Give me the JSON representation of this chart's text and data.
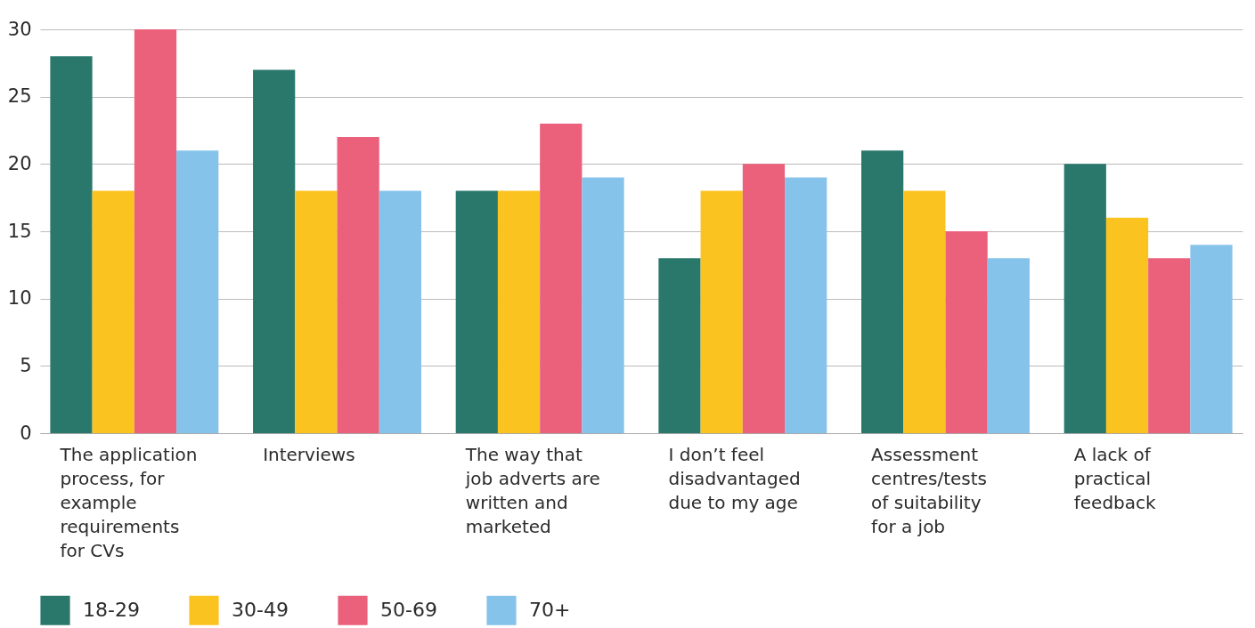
{
  "chart_data": {
    "type": "bar",
    "categories": [
      "The application process, for example requirements for CVs",
      "Interviews",
      "The way that job adverts are written and marketed",
      "I don’t feel disadvantaged due to my age",
      "Assessment centres/tests of suitability for a job",
      "A lack of practical feedback"
    ],
    "series": [
      {
        "name": "18-29",
        "color": "#2a786c",
        "values": [
          28,
          27,
          18,
          13,
          21,
          20
        ]
      },
      {
        "name": "30-49",
        "color": "#fbc31f",
        "values": [
          18,
          18,
          18,
          18,
          18,
          16
        ]
      },
      {
        "name": "50-69",
        "color": "#eb607b",
        "values": [
          30,
          22,
          23,
          20,
          15,
          13
        ]
      },
      {
        "name": "70+",
        "color": "#86c3ea",
        "values": [
          21,
          18,
          19,
          19,
          13,
          14
        ]
      }
    ],
    "ylim": [
      0,
      30
    ],
    "yticks": [
      0,
      5,
      10,
      15,
      20,
      25,
      30
    ],
    "grid": "y",
    "legend": "bottom"
  }
}
